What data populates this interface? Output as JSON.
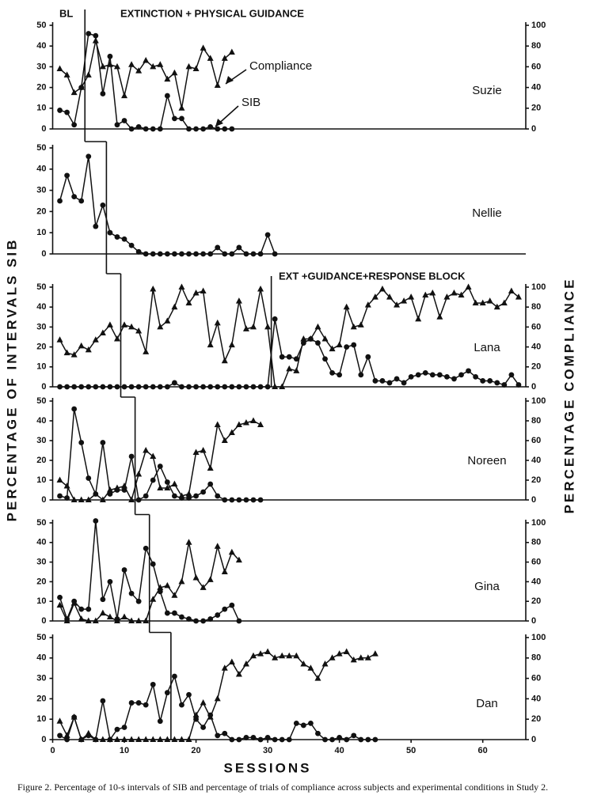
{
  "figure": {
    "ylabel": "PERCENTAGE OF INTERVALS SIB",
    "y2label": "PERCENTAGE COMPLIANCE",
    "caption": "Figure 2.   Percentage of 10-s intervals of SIB and percentage of trials of compliance across subjects and experimental conditions in Study 2."
  },
  "chart_data": [
    {
      "type": "line",
      "subject": "Suzie",
      "annotations": [
        "BL",
        "EXTINCTION + PHYSICAL GUIDANCE"
      ],
      "phase_change": [
        4.5
      ],
      "x": [
        1,
        2,
        3,
        4,
        5,
        6,
        7,
        8,
        9,
        10,
        11,
        12,
        13,
        14,
        15,
        16,
        17,
        18,
        19,
        20,
        21,
        22,
        23,
        24,
        25
      ],
      "series": [
        {
          "name": "SIB",
          "color": "#111111",
          "marker": "circle",
          "values": [
            9,
            8,
            2,
            20,
            46,
            45,
            17,
            35,
            2,
            4,
            0,
            1,
            0,
            0,
            0,
            16,
            5,
            5,
            0,
            0,
            0,
            1,
            0,
            0,
            0
          ]
        },
        {
          "name": "Compliance",
          "color": "#111111",
          "marker": "triangle",
          "axis": "y2",
          "values": [
            58,
            52,
            35,
            40,
            52,
            85,
            60,
            62,
            60,
            32,
            62,
            56,
            66,
            60,
            62,
            48,
            54,
            20,
            60,
            58,
            78,
            68,
            42,
            68,
            74
          ]
        }
      ],
      "xlim": [
        0,
        66
      ],
      "ylim": [
        0,
        50
      ],
      "yticks": [
        0,
        10,
        20,
        30,
        40,
        50
      ],
      "y2lim": [
        0,
        100
      ],
      "y2ticks": [
        0,
        20,
        40,
        60,
        80,
        100
      ]
    },
    {
      "type": "line",
      "subject": "Nellie",
      "phase_change": [
        7.5
      ],
      "x": [
        1,
        2,
        3,
        4,
        5,
        6,
        7,
        8,
        9,
        10,
        11,
        12,
        13,
        14,
        15,
        16,
        17,
        18,
        19,
        20,
        21,
        22,
        23,
        24,
        25,
        26,
        27,
        28,
        29,
        30,
        31
      ],
      "series": [
        {
          "color": "#111111",
          "marker": "circle",
          "values": [
            25,
            37,
            27,
            25,
            46,
            13,
            23,
            10,
            8,
            7,
            4,
            1,
            0,
            0,
            0,
            0,
            0,
            0,
            0,
            0,
            0,
            0,
            3,
            0,
            0,
            3,
            0,
            0,
            0,
            9,
            0
          ]
        }
      ],
      "xlim": [
        0,
        66
      ],
      "ylim": [
        0,
        50
      ],
      "yticks": [
        0,
        10,
        20,
        30,
        40,
        50
      ]
    },
    {
      "type": "line",
      "subject": "Lana",
      "annotations": [
        "EXT +GUIDANCE+RESPONSE BLOCK"
      ],
      "phase_change": [
        9.5,
        30.5
      ],
      "x": [
        1,
        2,
        3,
        4,
        5,
        6,
        7,
        8,
        9,
        10,
        11,
        12,
        13,
        14,
        15,
        16,
        17,
        18,
        19,
        20,
        21,
        22,
        23,
        24,
        25,
        26,
        27,
        28,
        29,
        30,
        31,
        32,
        33,
        34,
        35,
        36,
        37,
        38,
        39,
        40,
        41,
        42,
        43,
        44,
        45,
        46,
        47,
        48,
        49,
        50,
        51,
        52,
        53,
        54,
        55,
        56,
        57,
        58,
        59,
        60,
        61,
        62,
        63,
        64,
        65
      ],
      "series": [
        {
          "color": "#111111",
          "marker": "circle",
          "values": [
            0,
            0,
            0,
            0,
            0,
            0,
            0,
            0,
            0,
            0,
            0,
            0,
            0,
            0,
            0,
            0,
            2,
            0,
            0,
            0,
            0,
            0,
            0,
            0,
            0,
            0,
            0,
            0,
            0,
            0,
            34,
            15,
            15,
            14,
            22,
            24,
            22,
            14,
            7,
            6,
            20,
            21,
            6,
            15,
            3,
            3,
            2,
            4,
            2,
            5,
            6,
            7,
            6,
            6,
            5,
            4,
            6,
            8,
            5,
            3,
            3,
            2,
            1,
            6,
            1
          ]
        },
        {
          "color": "#111111",
          "marker": "triangle",
          "axis": "y2",
          "values": [
            47,
            34,
            32,
            41,
            37,
            47,
            54,
            62,
            48,
            62,
            60,
            56,
            35,
            98,
            60,
            66,
            80,
            100,
            84,
            94,
            96,
            42,
            64,
            26,
            42,
            86,
            58,
            60,
            98,
            60,
            0,
            0,
            18,
            16,
            48,
            48,
            60,
            48,
            38,
            42,
            80,
            60,
            62,
            82,
            90,
            98,
            90,
            82,
            86,
            90,
            68,
            92,
            94,
            70,
            90,
            94,
            92,
            100,
            84,
            84,
            86,
            80,
            84,
            96,
            90
          ]
        }
      ],
      "xlim": [
        0,
        66
      ],
      "ylim": [
        0,
        50
      ],
      "yticks": [
        0,
        10,
        20,
        30,
        40,
        50
      ],
      "y2lim": [
        0,
        100
      ],
      "y2ticks": [
        0,
        20,
        40,
        60,
        80,
        100
      ]
    },
    {
      "type": "line",
      "subject": "Noreen",
      "phase_change": [
        11.5
      ],
      "x": [
        1,
        2,
        3,
        4,
        5,
        6,
        7,
        8,
        9,
        10,
        11,
        12,
        13,
        14,
        15,
        16,
        17,
        18,
        19,
        20,
        21,
        22,
        23,
        24,
        25,
        26,
        27,
        28,
        29
      ],
      "series": [
        {
          "color": "#111111",
          "marker": "circle",
          "values": [
            2,
            1,
            46,
            29,
            11,
            3,
            29,
            3,
            5,
            5,
            22,
            0,
            2,
            10,
            17,
            9,
            2,
            1,
            1,
            2,
            4,
            8,
            2,
            0,
            0,
            0,
            0,
            0,
            0
          ]
        },
        {
          "color": "#111111",
          "marker": "triangle",
          "axis": "y2",
          "values": [
            20,
            14,
            0,
            0,
            0,
            6,
            0,
            10,
            12,
            14,
            0,
            26,
            50,
            44,
            12,
            12,
            16,
            4,
            6,
            48,
            50,
            32,
            76,
            60,
            68,
            76,
            78,
            80,
            76
          ]
        }
      ],
      "xlim": [
        0,
        66
      ],
      "ylim": [
        0,
        50
      ],
      "yticks": [
        0,
        10,
        20,
        30,
        40,
        50
      ],
      "y2lim": [
        0,
        100
      ],
      "y2ticks": [
        0,
        20,
        40,
        60,
        80,
        100
      ]
    },
    {
      "type": "line",
      "subject": "Gina",
      "phase_change": [
        13.5
      ],
      "x": [
        1,
        2,
        3,
        4,
        5,
        6,
        7,
        8,
        9,
        10,
        11,
        12,
        13,
        14,
        15,
        16,
        17,
        18,
        19,
        20,
        21,
        22,
        23,
        24,
        25,
        26
      ],
      "series": [
        {
          "color": "#111111",
          "marker": "circle",
          "values": [
            12,
            1,
            10,
            6,
            6,
            51,
            11,
            20,
            1,
            26,
            14,
            10,
            37,
            29,
            15,
            4,
            4,
            2,
            1,
            0,
            0,
            1,
            3,
            6,
            8,
            0
          ]
        },
        {
          "color": "#111111",
          "marker": "triangle",
          "axis": "y2",
          "values": [
            16,
            0,
            18,
            2,
            0,
            0,
            8,
            4,
            0,
            4,
            0,
            0,
            0,
            22,
            34,
            36,
            26,
            40,
            80,
            44,
            34,
            42,
            76,
            50,
            70,
            62
          ]
        }
      ],
      "xlim": [
        0,
        66
      ],
      "ylim": [
        0,
        50
      ],
      "yticks": [
        0,
        10,
        20,
        30,
        40,
        50
      ],
      "y2lim": [
        0,
        100
      ],
      "y2ticks": [
        0,
        20,
        40,
        60,
        80,
        100
      ]
    },
    {
      "type": "line",
      "subject": "Dan",
      "phase_change": [
        16.5
      ],
      "xlabel": "SESSIONS",
      "x": [
        1,
        2,
        3,
        4,
        5,
        6,
        7,
        8,
        9,
        10,
        11,
        12,
        13,
        14,
        15,
        16,
        17,
        18,
        19,
        20,
        21,
        22,
        23,
        24,
        25,
        26,
        27,
        28,
        29,
        30,
        31,
        32,
        33,
        34,
        35,
        36,
        37,
        38,
        39,
        40,
        41,
        42,
        43,
        44,
        45
      ],
      "series": [
        {
          "color": "#111111",
          "marker": "circle",
          "values": [
            2,
            0,
            11,
            0,
            2,
            0,
            19,
            0,
            5,
            6,
            18,
            18,
            17,
            27,
            9,
            23,
            31,
            17,
            22,
            10,
            6,
            12,
            2,
            3,
            0,
            0,
            1,
            1,
            0,
            1,
            0,
            0,
            0,
            8,
            7,
            8,
            3,
            0,
            0,
            1,
            0,
            2,
            0,
            0,
            0
          ]
        },
        {
          "color": "#111111",
          "marker": "triangle",
          "axis": "y2",
          "values": [
            18,
            4,
            22,
            0,
            6,
            0,
            0,
            0,
            0,
            0,
            0,
            0,
            0,
            0,
            0,
            0,
            0,
            0,
            0,
            24,
            36,
            22,
            40,
            70,
            76,
            64,
            74,
            82,
            84,
            86,
            80,
            82,
            82,
            82,
            74,
            70,
            60,
            74,
            80,
            84,
            86,
            78,
            80,
            80,
            84
          ]
        }
      ],
      "xlim": [
        0,
        66
      ],
      "ylim": [
        0,
        50
      ],
      "yticks": [
        0,
        10,
        20,
        30,
        40,
        50
      ],
      "y2lim": [
        0,
        100
      ],
      "y2ticks": [
        0,
        20,
        40,
        60,
        80,
        100
      ],
      "xticks": [
        0,
        10,
        20,
        30,
        40,
        50,
        60
      ]
    }
  ]
}
